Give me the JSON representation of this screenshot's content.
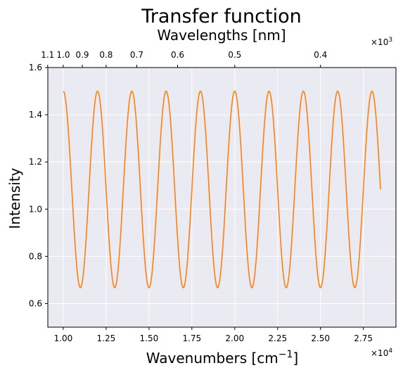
{
  "chart_data": {
    "type": "line",
    "title": "Transfer function",
    "subtitle": "Wavelengths [nm]",
    "xlabel_main": "Wavenumbers [cm",
    "xlabel_sup": "−1",
    "xlabel_end": "]",
    "ylabel": "Intensity",
    "xlim": [
      9100,
      29400
    ],
    "ylim": [
      0.5,
      1.6
    ],
    "x_ticks": [
      10000,
      12500,
      15000,
      17500,
      20000,
      22500,
      25000,
      27500
    ],
    "x_tick_labels": [
      "1.00",
      "1.25",
      "1.50",
      "1.75",
      "2.00",
      "2.25",
      "2.50",
      "2.75"
    ],
    "x_multiplier_base": "×10",
    "x_multiplier_exp": "4",
    "y_ticks": [
      0.6,
      0.8,
      1.0,
      1.2,
      1.4,
      1.6
    ],
    "y_tick_labels": [
      "0.6",
      "0.8",
      "1.0",
      "1.2",
      "1.4",
      "1.6"
    ],
    "top_ticks_x": [
      9091,
      10000,
      11111,
      12500,
      14286,
      16667,
      20000,
      25000
    ],
    "top_tick_labels": [
      "1.1",
      "1.0",
      "0.9",
      "0.8",
      "0.7",
      "0.6",
      "0.5",
      "0.4"
    ],
    "top_multiplier_base": "×10",
    "top_multiplier_exp": "3",
    "grid": true,
    "series": [
      {
        "color": "#ff7f0e",
        "x_start": 10000,
        "x_end": 28500,
        "period": 2000,
        "max": 1.5,
        "min": 0.667,
        "note_function": "y = 1.0835 + 0.4165*cos(2*pi*(x-10000)/2000)"
      }
    ]
  }
}
